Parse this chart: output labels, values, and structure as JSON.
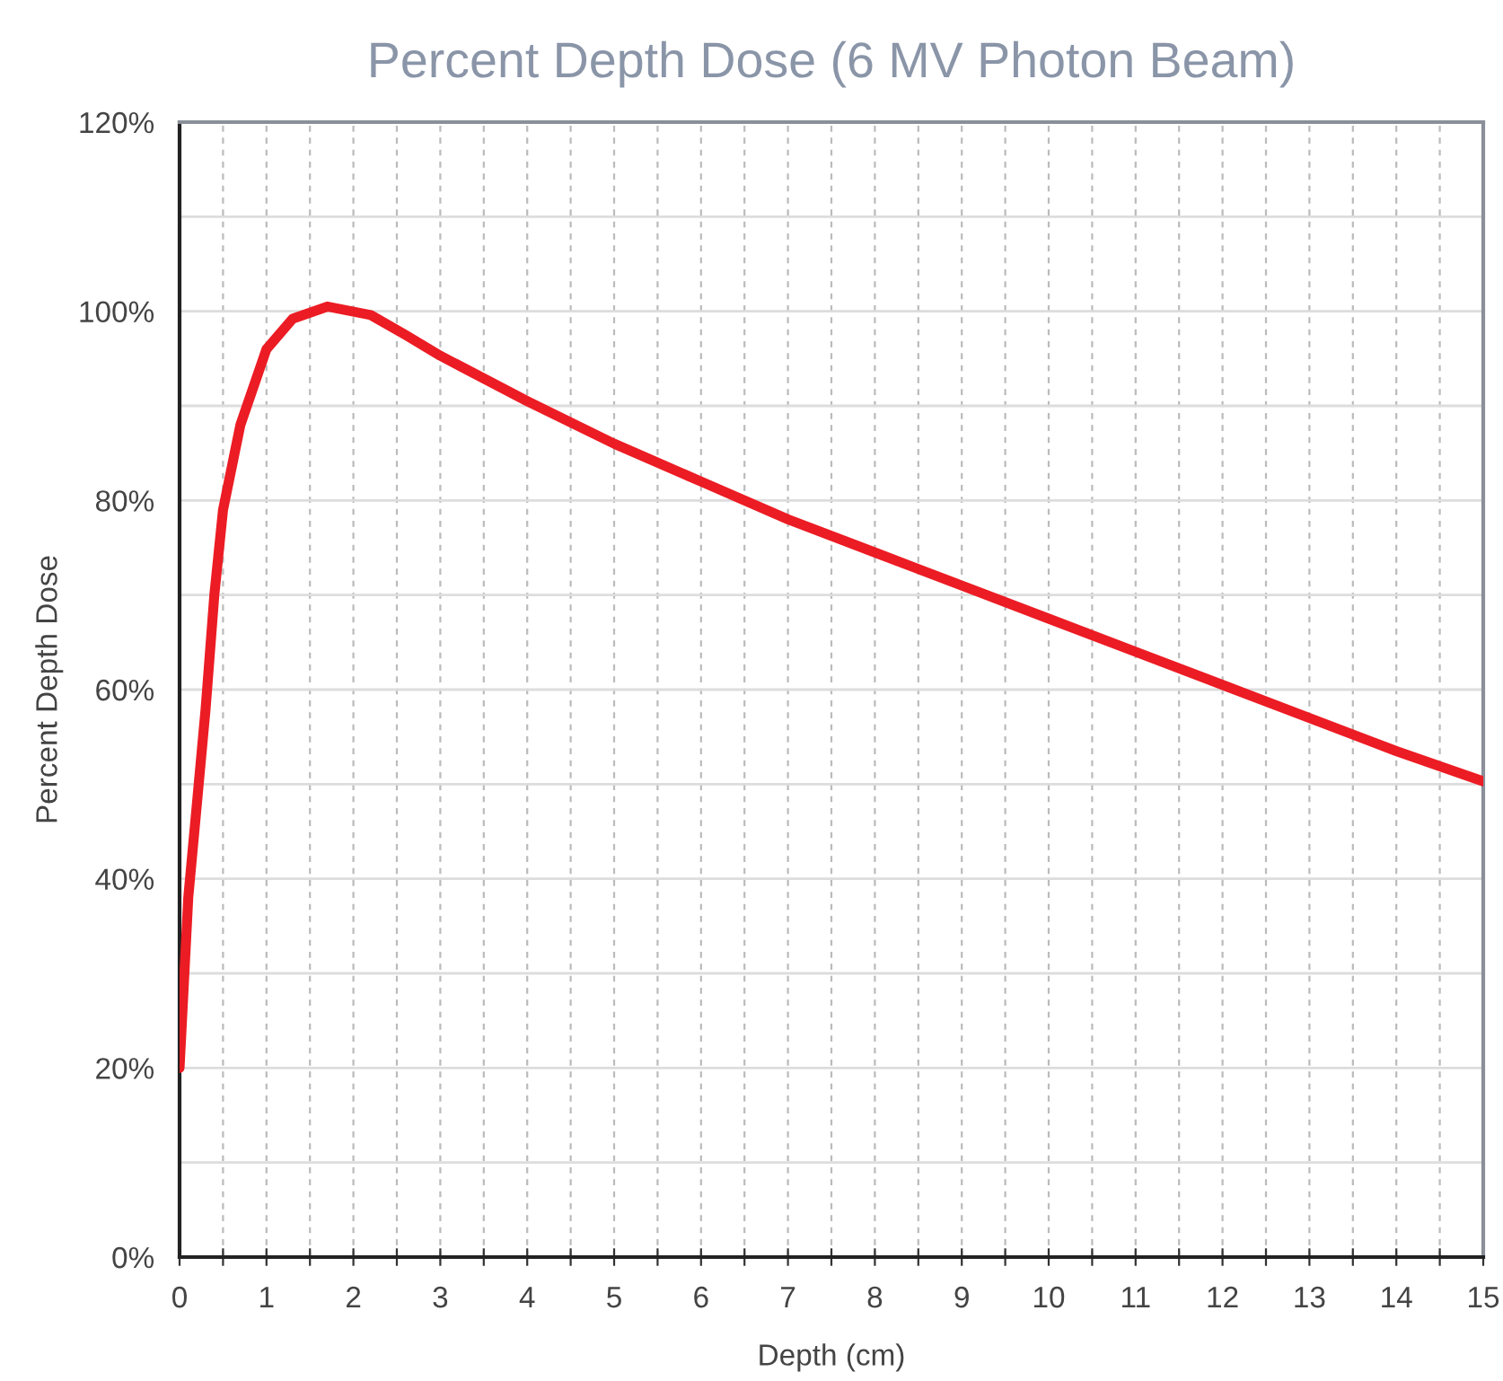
{
  "chart_data": {
    "type": "line",
    "title": "Percent Depth Dose (6 MV Photon Beam)",
    "xlabel": "Depth (cm)",
    "ylabel": "Percent Depth Dose",
    "series": [
      {
        "color": "#ec1c24",
        "x": [
          0,
          0.1,
          0.2,
          0.3,
          0.4,
          0.5,
          0.7,
          1.0,
          1.3,
          1.7,
          2.2,
          2.6,
          3,
          4,
          5,
          6,
          7,
          8,
          9,
          10,
          11,
          12,
          13,
          14,
          15
        ],
        "values": [
          20,
          38,
          48,
          58,
          70,
          79,
          88,
          96,
          99.2,
          100.5,
          99.6,
          97.5,
          95.3,
          90.5,
          86,
          82,
          78,
          74.5,
          71,
          67.5,
          64,
          60.5,
          57,
          53.5,
          50.3
        ]
      }
    ],
    "xlim": [
      0,
      15
    ],
    "ylim": [
      0,
      120
    ],
    "xticks": [
      0,
      {
        "value": 0.5,
        "label": null
      },
      1,
      {
        "value": 1.5,
        "label": null
      },
      2,
      {
        "value": 2.5,
        "label": null
      },
      3,
      {
        "value": 3.5,
        "label": null
      },
      4,
      {
        "value": 4.5,
        "label": null
      },
      5,
      {
        "value": 5.5,
        "label": null
      },
      6,
      {
        "value": 6.5,
        "label": null
      },
      7,
      {
        "value": 7.5,
        "label": null
      },
      8,
      {
        "value": 8.5,
        "label": null
      },
      9,
      {
        "value": 9.5,
        "label": null
      },
      10,
      {
        "value": 10.5,
        "label": null
      },
      11,
      {
        "value": 11.5,
        "label": null
      },
      12,
      {
        "value": 12.5,
        "label": null
      },
      13,
      {
        "value": 13.5,
        "label": null
      },
      14,
      {
        "value": 14.5,
        "label": null
      },
      15
    ],
    "yticks": [
      {
        "value": 0,
        "label": "0%"
      },
      {
        "value": 10,
        "label": null
      },
      {
        "value": 20,
        "label": "20%"
      },
      {
        "value": 30,
        "label": null
      },
      {
        "value": 40,
        "label": "40%"
      },
      {
        "value": 50,
        "label": null
      },
      {
        "value": 60,
        "label": "60%"
      },
      {
        "value": 70,
        "label": null
      },
      {
        "value": 80,
        "label": "80%"
      },
      {
        "value": 90,
        "label": null
      },
      {
        "value": 100,
        "label": "100%"
      },
      {
        "value": 110,
        "label": null
      },
      {
        "value": 120,
        "label": "120%"
      }
    ],
    "grid": true,
    "marker": "none",
    "line_style": "solid"
  }
}
